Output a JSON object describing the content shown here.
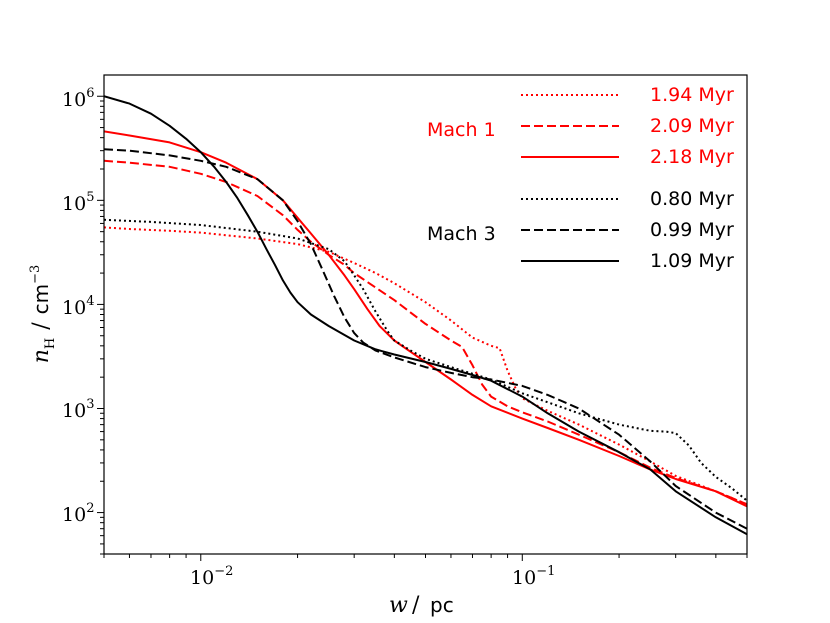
{
  "chart_data": {
    "type": "line",
    "xscale": "log",
    "yscale": "log",
    "xlim": [
      0.005,
      0.5
    ],
    "ylim": [
      40,
      1600000
    ],
    "xlabel": {
      "var": "w",
      "unit": "pc"
    },
    "ylabel": {
      "var": "n",
      "sub": "H",
      "unit": "cm",
      "unit_exp": "−3"
    },
    "xticks": [
      {
        "value": 0.01,
        "base": "10",
        "exp": "−2"
      },
      {
        "value": 0.1,
        "base": "10",
        "exp": "−1"
      }
    ],
    "yticks": [
      {
        "value": 100,
        "base": "10",
        "exp": "2"
      },
      {
        "value": 1000,
        "base": "10",
        "exp": "3"
      },
      {
        "value": 10000,
        "base": "10",
        "exp": "4"
      },
      {
        "value": 100000,
        "base": "10",
        "exp": "5"
      },
      {
        "value": 1000000,
        "base": "10",
        "exp": "6"
      }
    ],
    "legend_groups": [
      {
        "name": "Mach 1",
        "color": "#ff0000"
      },
      {
        "name": "Mach 3",
        "color": "#000000"
      }
    ],
    "series": [
      {
        "name": "1.94 Myr",
        "group": "Mach 1",
        "color": "#ff0000",
        "style": "dotted",
        "x": [
          0.005,
          0.006,
          0.008,
          0.01,
          0.015,
          0.02,
          0.025,
          0.03,
          0.035,
          0.04,
          0.05,
          0.06,
          0.07,
          0.08,
          0.085,
          0.09,
          0.095,
          0.1,
          0.12,
          0.15,
          0.2,
          0.25,
          0.3,
          0.4,
          0.5
        ],
        "y": [
          55000,
          53000,
          51000,
          49000,
          43000,
          38000,
          32000,
          25000,
          20000,
          16000,
          10500,
          7000,
          4800,
          4000,
          3800,
          2300,
          1600,
          1250,
          950,
          700,
          450,
          310,
          225,
          160,
          120
        ]
      },
      {
        "name": "2.09 Myr",
        "group": "Mach 1",
        "color": "#ff0000",
        "style": "dashed",
        "x": [
          0.005,
          0.006,
          0.008,
          0.01,
          0.012,
          0.015,
          0.018,
          0.02,
          0.022,
          0.025,
          0.028,
          0.03,
          0.035,
          0.04,
          0.05,
          0.06,
          0.065,
          0.07,
          0.075,
          0.08,
          0.09,
          0.1,
          0.12,
          0.15,
          0.2,
          0.25,
          0.3,
          0.4,
          0.5
        ],
        "y": [
          240000,
          230000,
          210000,
          180000,
          150000,
          110000,
          72000,
          52000,
          40000,
          30000,
          24000,
          20000,
          14500,
          11000,
          6500,
          4500,
          3900,
          2600,
          1700,
          1300,
          1050,
          920,
          750,
          560,
          380,
          270,
          215,
          160,
          120
        ]
      },
      {
        "name": "2.18 Myr",
        "group": "Mach 1",
        "color": "#ff0000",
        "style": "solid",
        "x": [
          0.005,
          0.006,
          0.008,
          0.01,
          0.012,
          0.015,
          0.018,
          0.02,
          0.022,
          0.025,
          0.028,
          0.03,
          0.033,
          0.036,
          0.04,
          0.045,
          0.05,
          0.06,
          0.07,
          0.08,
          0.1,
          0.12,
          0.15,
          0.2,
          0.25,
          0.3,
          0.4,
          0.5
        ],
        "y": [
          460000,
          420000,
          360000,
          290000,
          230000,
          160000,
          100000,
          68000,
          48000,
          30000,
          19000,
          14000,
          9000,
          6200,
          4500,
          3500,
          2800,
          1900,
          1350,
          1050,
          800,
          650,
          500,
          350,
          260,
          210,
          160,
          115
        ]
      },
      {
        "name": "0.80 Myr",
        "group": "Mach 3",
        "color": "#000000",
        "style": "dotted",
        "x": [
          0.005,
          0.007,
          0.01,
          0.015,
          0.02,
          0.025,
          0.028,
          0.03,
          0.032,
          0.035,
          0.038,
          0.04,
          0.045,
          0.05,
          0.06,
          0.08,
          0.1,
          0.15,
          0.2,
          0.25,
          0.28,
          0.3,
          0.33,
          0.36,
          0.4,
          0.45,
          0.5
        ],
        "y": [
          65000,
          62000,
          58000,
          50000,
          43000,
          34000,
          26000,
          19000,
          14000,
          8500,
          5600,
          4500,
          3600,
          3000,
          2500,
          1900,
          1400,
          900,
          700,
          610,
          600,
          580,
          440,
          300,
          220,
          170,
          130
        ]
      },
      {
        "name": "0.99 Myr",
        "group": "Mach 3",
        "color": "#000000",
        "style": "dashed",
        "x": [
          0.005,
          0.006,
          0.008,
          0.01,
          0.012,
          0.015,
          0.018,
          0.02,
          0.022,
          0.024,
          0.026,
          0.028,
          0.03,
          0.032,
          0.035,
          0.04,
          0.05,
          0.06,
          0.07,
          0.08,
          0.1,
          0.12,
          0.15,
          0.2,
          0.25,
          0.3,
          0.4,
          0.5
        ],
        "y": [
          310000,
          300000,
          270000,
          240000,
          210000,
          160000,
          100000,
          63000,
          38000,
          21000,
          12000,
          7500,
          5300,
          4300,
          3600,
          3100,
          2500,
          2200,
          2000,
          1900,
          1650,
          1350,
          1000,
          560,
          310,
          180,
          100,
          70
        ]
      },
      {
        "name": "1.09 Myr",
        "group": "Mach 3",
        "color": "#000000",
        "style": "solid",
        "x": [
          0.005,
          0.006,
          0.007,
          0.008,
          0.009,
          0.01,
          0.011,
          0.012,
          0.013,
          0.014,
          0.015,
          0.016,
          0.017,
          0.018,
          0.019,
          0.02,
          0.022,
          0.025,
          0.03,
          0.035,
          0.04,
          0.05,
          0.06,
          0.07,
          0.08,
          0.1,
          0.12,
          0.15,
          0.2,
          0.25,
          0.3,
          0.4,
          0.5
        ],
        "y": [
          1000000,
          850000,
          680000,
          520000,
          390000,
          290000,
          210000,
          150000,
          105000,
          72000,
          50000,
          34000,
          24000,
          17000,
          13000,
          10500,
          8000,
          6200,
          4500,
          3700,
          3300,
          2800,
          2400,
          2100,
          1850,
          1300,
          900,
          600,
          380,
          260,
          160,
          90,
          62
        ]
      }
    ]
  }
}
